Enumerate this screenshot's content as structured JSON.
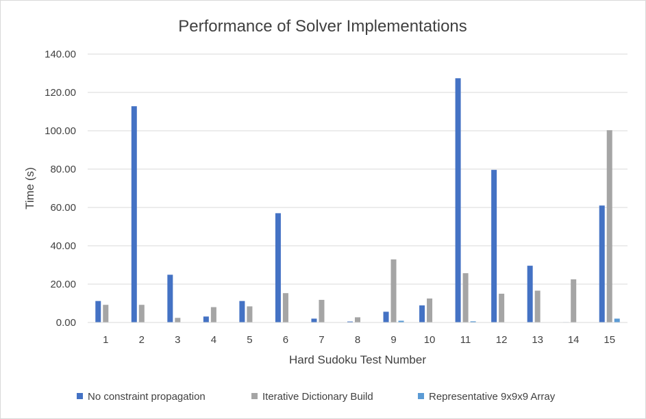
{
  "chart_data": {
    "type": "bar",
    "title": "Performance of Solver Implementations",
    "xlabel": "Hard Sudoku Test Number",
    "ylabel": "Time (s)",
    "ylim": [
      0,
      140
    ],
    "yticks": [
      "0.00",
      "20.00",
      "40.00",
      "60.00",
      "80.00",
      "100.00",
      "120.00",
      "140.00"
    ],
    "grid": true,
    "legend_position": "bottom",
    "categories": [
      "1",
      "2",
      "3",
      "4",
      "5",
      "6",
      "7",
      "8",
      "9",
      "10",
      "11",
      "12",
      "13",
      "14",
      "15"
    ],
    "series": [
      {
        "name": "No constraint propagation",
        "color": "#4472C4",
        "values": [
          11.2,
          112.8,
          24.9,
          3.1,
          11.2,
          57.0,
          2.0,
          0.5,
          5.6,
          8.9,
          127.4,
          79.6,
          29.6,
          0.2,
          61.0
        ]
      },
      {
        "name": "Iterative Dictionary Build",
        "color": "#A5A5A5",
        "values": [
          9.2,
          9.2,
          2.4,
          8.0,
          8.4,
          15.3,
          11.8,
          2.7,
          32.9,
          12.5,
          25.7,
          15.0,
          16.6,
          22.5,
          100.3
        ]
      },
      {
        "name": "Representative 9x9x9 Array",
        "color": "#5B9BD5",
        "values": [
          0.1,
          0.1,
          0.1,
          0.1,
          0.1,
          0.1,
          0.1,
          0.1,
          0.9,
          0.1,
          0.6,
          0.1,
          0.1,
          0.1,
          2.0
        ]
      }
    ]
  }
}
